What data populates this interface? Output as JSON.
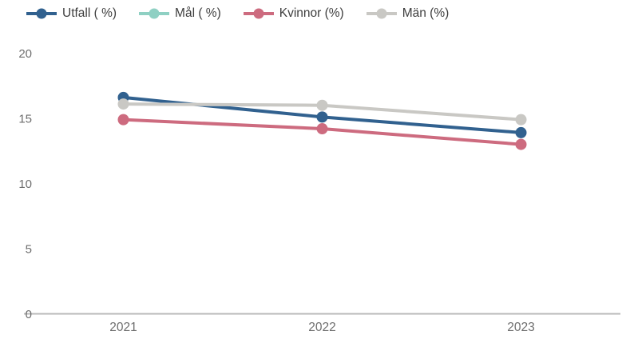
{
  "chart_data": {
    "type": "line",
    "title": "",
    "categories": [
      "2021",
      "2022",
      "2023"
    ],
    "series": [
      {
        "name": "Utfall ( %)",
        "slug": "utfall",
        "color": "#31618f",
        "values": [
          16.6,
          15.1,
          13.9
        ]
      },
      {
        "name": "Mål ( %)",
        "slug": "mal",
        "color": "#8fd0c3",
        "values": []
      },
      {
        "name": "Kvinnor (%)",
        "slug": "kvinnor",
        "color": "#cd6b7f",
        "values": [
          14.9,
          14.2,
          13.0
        ]
      },
      {
        "name": "Män (%)",
        "slug": "man",
        "color": "#c9c8c4",
        "values": [
          16.1,
          16.0,
          14.9
        ]
      }
    ],
    "yticks": [
      0,
      5,
      10,
      15,
      20
    ],
    "ylim": [
      0,
      20
    ],
    "grid": false,
    "legend_position": "top-left"
  },
  "colors": {
    "background": "#ffffff",
    "axis_line": "#b9b9b9",
    "tick_label": "#6e6e6e",
    "legend_text": "#3d3d3d"
  }
}
